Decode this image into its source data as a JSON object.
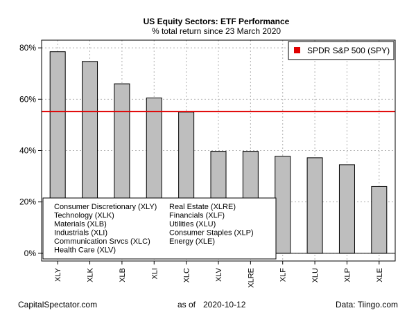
{
  "chart_data": {
    "type": "bar",
    "title": "US Equity Sectors: ETF Performance",
    "subtitle": "% total return since 23 March 2020",
    "categories": [
      "XLY",
      "XLK",
      "XLB",
      "XLI",
      "XLC",
      "XLV",
      "XLRE",
      "XLF",
      "XLU",
      "XLP",
      "XLE"
    ],
    "values": [
      78.5,
      74.7,
      66.0,
      60.5,
      55.0,
      39.7,
      39.7,
      37.8,
      37.2,
      34.5,
      26.0
    ],
    "ylim": [
      -3,
      83
    ],
    "yticks": [
      0,
      20,
      40,
      60,
      80
    ],
    "ytick_labels": [
      "0%",
      "20%",
      "40%",
      "60%",
      "80%"
    ],
    "grid": true,
    "bar_color": "#bebebe",
    "reference_line": {
      "label": "SPDR S&P 500 (SPY)",
      "value": 55.2,
      "color": "#e00000"
    },
    "reference_legend_placement": "top-right",
    "sector_legend": {
      "placement": "bottom-left",
      "left_column": [
        "Consumer Discretionary (XLY)",
        "Technology (XLK)",
        "Materials (XLB)",
        "Industrials (XLI)",
        "Communication Srvcs (XLC)",
        "Health Care (XLV)"
      ],
      "right_column": [
        "Real Estate (XLRE)",
        "Financials (XLF)",
        "Utilities (XLU)",
        "Consumer Staples (XLP)",
        "Energy (XLE)"
      ]
    }
  },
  "footer": {
    "left": "CapitalSpectator.com",
    "center_prefix": "as of",
    "center_date": "2020-10-12",
    "right": "Data: Tiingo.com"
  }
}
